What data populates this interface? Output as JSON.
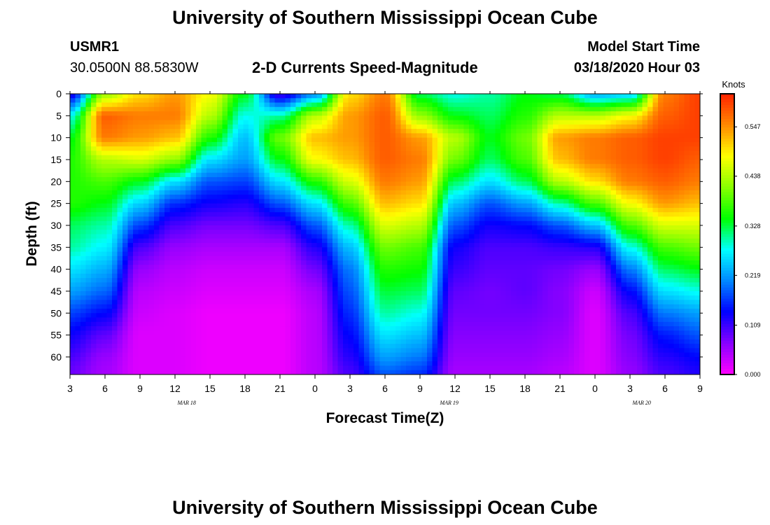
{
  "page_title": "University of Southern Mississippi Ocean Cube",
  "footer_title": "University of Southern Mississippi Ocean Cube",
  "station": {
    "id": "USMR1",
    "coordinates": "30.0500N 88.5830W"
  },
  "model_start": {
    "label": "Model Start Time",
    "value": "03/18/2020 Hour 03"
  },
  "chart_data": {
    "type": "heatmap",
    "title": "2-D Currents Speed-Magnitude",
    "xlabel": "Forecast Time(Z)",
    "ylabel": "Depth (ft)",
    "x_tick_labels": [
      "3",
      "6",
      "9",
      "12",
      "15",
      "18",
      "21",
      "0",
      "3",
      "6",
      "9",
      "12",
      "15",
      "18",
      "21",
      "0",
      "3",
      "6",
      "9"
    ],
    "x_range_hours": [
      0,
      54
    ],
    "date_labels": [
      {
        "text": "MAR 18",
        "hour": 10
      },
      {
        "text": "MAR 19",
        "hour": 32.5
      },
      {
        "text": "MAR 20",
        "hour": 49
      }
    ],
    "y_ticks": [
      0,
      5,
      10,
      15,
      20,
      25,
      30,
      35,
      40,
      45,
      50,
      55,
      60
    ],
    "y_range_ft": [
      0,
      64
    ],
    "y_inverted": true,
    "colorbar": {
      "unit_label": "Knots",
      "tick_labels": [
        "0.547",
        "0.438",
        "0.328",
        "0.219",
        "0.109",
        "0.000"
      ],
      "range": [
        0.0,
        0.62
      ],
      "colors": [
        "#ff00ff",
        "#8800ff",
        "#0000ff",
        "#0088ff",
        "#00ffff",
        "#00ff00",
        "#88ff00",
        "#ffff00",
        "#ff8800",
        "#ff2200"
      ]
    },
    "columns": [
      {
        "hour": 0,
        "speeds": [
          0.12,
          0.28,
          0.34,
          0.36,
          0.36,
          0.36,
          0.32,
          0.3,
          0.26,
          0.22,
          0.17,
          0.13,
          0.1,
          0.08
        ]
      },
      {
        "hour": 3,
        "speeds": [
          0.42,
          0.58,
          0.56,
          0.44,
          0.38,
          0.34,
          0.3,
          0.27,
          0.23,
          0.19,
          0.14,
          0.09,
          0.06,
          0.05
        ]
      },
      {
        "hour": 6,
        "speeds": [
          0.5,
          0.56,
          0.54,
          0.46,
          0.34,
          0.25,
          0.17,
          0.1,
          0.06,
          0.04,
          0.03,
          0.02,
          0.02,
          0.02
        ]
      },
      {
        "hour": 9,
        "speeds": [
          0.54,
          0.56,
          0.52,
          0.42,
          0.26,
          0.16,
          0.1,
          0.06,
          0.04,
          0.03,
          0.02,
          0.02,
          0.02,
          0.02
        ]
      },
      {
        "hour": 12,
        "speeds": [
          0.48,
          0.44,
          0.36,
          0.26,
          0.18,
          0.13,
          0.08,
          0.05,
          0.03,
          0.02,
          0.01,
          0.01,
          0.01,
          0.01
        ]
      },
      {
        "hour": 15,
        "speeds": [
          0.34,
          0.28,
          0.24,
          0.22,
          0.17,
          0.12,
          0.08,
          0.05,
          0.03,
          0.02,
          0.01,
          0.01,
          0.01,
          0.01
        ]
      },
      {
        "hour": 18,
        "speeds": [
          0.1,
          0.3,
          0.4,
          0.34,
          0.26,
          0.18,
          0.1,
          0.05,
          0.03,
          0.02,
          0.01,
          0.01,
          0.01,
          0.01
        ]
      },
      {
        "hour": 21,
        "speeds": [
          0.2,
          0.44,
          0.52,
          0.48,
          0.36,
          0.26,
          0.18,
          0.12,
          0.08,
          0.05,
          0.04,
          0.04,
          0.04,
          0.04
        ]
      },
      {
        "hour": 24,
        "speeds": [
          0.5,
          0.54,
          0.54,
          0.52,
          0.46,
          0.38,
          0.3,
          0.24,
          0.2,
          0.18,
          0.16,
          0.14,
          0.12,
          0.1
        ]
      },
      {
        "hour": 27,
        "speeds": [
          0.56,
          0.58,
          0.58,
          0.58,
          0.56,
          0.52,
          0.46,
          0.4,
          0.36,
          0.33,
          0.3,
          0.26,
          0.22,
          0.18
        ]
      },
      {
        "hour": 30,
        "speeds": [
          0.32,
          0.42,
          0.54,
          0.56,
          0.54,
          0.5,
          0.44,
          0.38,
          0.35,
          0.32,
          0.28,
          0.24,
          0.2,
          0.16
        ]
      },
      {
        "hour": 33,
        "speeds": [
          0.28,
          0.34,
          0.44,
          0.4,
          0.32,
          0.24,
          0.18,
          0.13,
          0.11,
          0.09,
          0.08,
          0.07,
          0.06,
          0.05
        ]
      },
      {
        "hour": 36,
        "speeds": [
          0.3,
          0.32,
          0.34,
          0.32,
          0.26,
          0.18,
          0.13,
          0.1,
          0.09,
          0.08,
          0.08,
          0.07,
          0.06,
          0.05
        ]
      },
      {
        "hour": 39,
        "speeds": [
          0.34,
          0.36,
          0.4,
          0.38,
          0.32,
          0.22,
          0.14,
          0.1,
          0.09,
          0.09,
          0.08,
          0.07,
          0.06,
          0.05
        ]
      },
      {
        "hour": 42,
        "speeds": [
          0.32,
          0.44,
          0.54,
          0.52,
          0.44,
          0.3,
          0.18,
          0.11,
          0.08,
          0.07,
          0.07,
          0.06,
          0.05,
          0.04
        ]
      },
      {
        "hour": 45,
        "speeds": [
          0.22,
          0.44,
          0.56,
          0.56,
          0.5,
          0.38,
          0.24,
          0.12,
          0.06,
          0.03,
          0.02,
          0.02,
          0.02,
          0.02
        ]
      },
      {
        "hour": 48,
        "speeds": [
          0.24,
          0.48,
          0.58,
          0.58,
          0.56,
          0.48,
          0.38,
          0.28,
          0.2,
          0.14,
          0.1,
          0.08,
          0.07,
          0.06
        ]
      },
      {
        "hour": 51,
        "speeds": [
          0.56,
          0.58,
          0.6,
          0.6,
          0.58,
          0.54,
          0.46,
          0.38,
          0.32,
          0.26,
          0.2,
          0.15,
          0.12,
          0.1
        ]
      },
      {
        "hour": 54,
        "speeds": [
          0.6,
          0.6,
          0.6,
          0.58,
          0.56,
          0.52,
          0.46,
          0.4,
          0.34,
          0.28,
          0.22,
          0.18,
          0.14,
          0.12
        ]
      }
    ],
    "column_depths_ft": [
      0,
      5,
      10,
      15,
      20,
      25,
      30,
      35,
      40,
      45,
      50,
      55,
      60,
      64
    ]
  }
}
